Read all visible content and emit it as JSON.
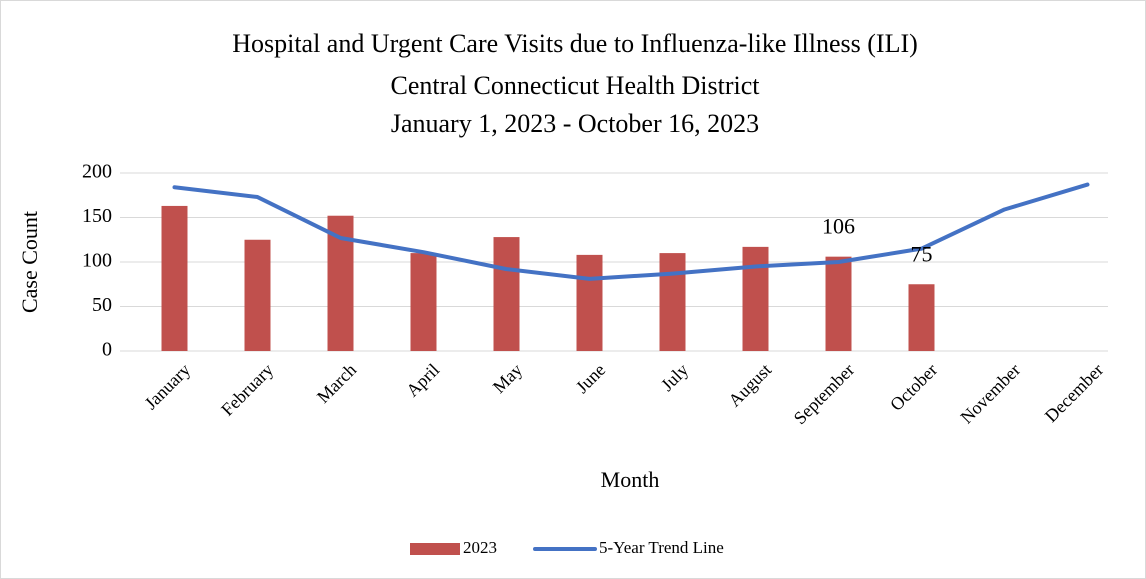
{
  "chart_data": {
    "type": "bar",
    "title": [
      "Hospital and Urgent Care Visits due to Influenza-like Illness (ILI)",
      "Central Connecticut Health District",
      "January 1, 2023 - October 16, 2023"
    ],
    "x_label": "Month",
    "y_label": "Case Count",
    "categories": [
      "January",
      "February",
      "March",
      "April",
      "May",
      "June",
      "July",
      "August",
      "September",
      "October",
      "November",
      "December"
    ],
    "series": [
      {
        "name": "2023",
        "type": "bar",
        "color": "#c0504d",
        "values": [
          163,
          125,
          152,
          110,
          128,
          108,
          110,
          117,
          106,
          75,
          null,
          null
        ],
        "value_labels": [
          null,
          null,
          null,
          null,
          null,
          null,
          null,
          null,
          "106",
          "75",
          null,
          null
        ]
      },
      {
        "name": "5-Year Trend Line",
        "type": "line",
        "color": "#4472c4",
        "values": [
          184,
          173,
          127,
          111,
          92,
          81,
          87,
          95,
          100,
          115,
          159,
          187
        ]
      }
    ],
    "ylim": [
      0,
      200
    ],
    "yticks": [
      0,
      50,
      100,
      150,
      200
    ],
    "grid": true,
    "legend": "bottom"
  }
}
